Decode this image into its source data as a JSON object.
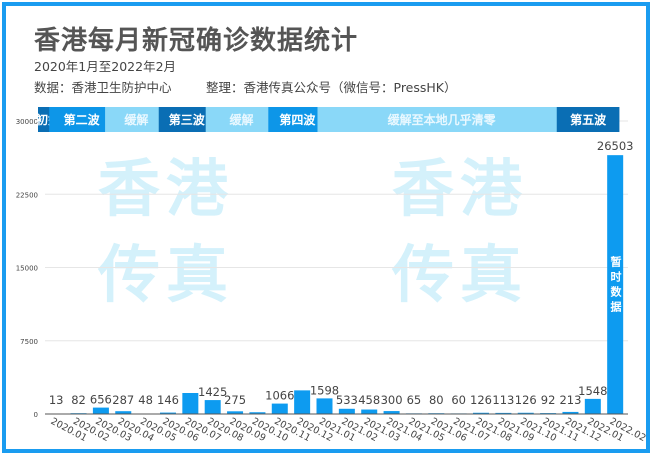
{
  "header": {
    "title": "香港每月新冠确诊数据统计",
    "period": "2020年1月至2022年2月",
    "source": "数据：香港卫生防护中心",
    "compiler": "整理：香港传真公众号（微信号：PressHK）"
  },
  "watermark": "香港传真",
  "colors": {
    "frame": "#1a9cf0",
    "bar": "#0d9bf0",
    "wave": "#0a6eb4",
    "wave_alt": "#0d96e8",
    "relief": "#8ad8f8"
  },
  "chart_data": {
    "type": "bar",
    "categories": [
      "2020.01",
      "2020.02",
      "2020.03",
      "2020.04",
      "2020.05",
      "2020.06",
      "2020.07",
      "2020.08",
      "2020.09",
      "2020.10",
      "2020.11",
      "2020.12",
      "2021.01",
      "2021.02",
      "2021.03",
      "2021.04",
      "2021.05",
      "2021.06",
      "2021.07",
      "2021.08",
      "2021.09",
      "2021.10",
      "2021.11",
      "2021.12",
      "2022.01",
      "2022.02"
    ],
    "values": [
      13,
      82,
      656,
      287,
      48,
      146,
      2150,
      1425,
      275,
      180,
      1066,
      2420,
      1598,
      533,
      458,
      300,
      65,
      80,
      60,
      126,
      113,
      126,
      92,
      213,
      1548,
      26503
    ],
    "labels": [
      "13",
      "82",
      "656",
      "287",
      "48",
      "146",
      null,
      "1425",
      "275",
      null,
      "1066",
      null,
      "1598",
      "533",
      "458",
      "300",
      "65",
      "80",
      "60",
      "126",
      "113",
      "126",
      "92",
      "213",
      "1548",
      "26503"
    ],
    "ylim": [
      0,
      30000
    ],
    "yticks": [
      "0",
      "7500",
      "15000",
      "22500",
      "30000"
    ],
    "grid": true,
    "annotation": "暂时数据",
    "phases": [
      {
        "label": "初始",
        "from": 0,
        "to": 0.5,
        "kind": "wave"
      },
      {
        "label": "第二波",
        "from": 0.5,
        "to": 3,
        "kind": "wave_alt"
      },
      {
        "label": "缓解",
        "from": 3,
        "to": 5.4,
        "kind": "relief"
      },
      {
        "label": "第三波",
        "from": 5.4,
        "to": 7.5,
        "kind": "wave"
      },
      {
        "label": "缓解",
        "from": 7.5,
        "to": 10.3,
        "kind": "relief"
      },
      {
        "label": "第四波",
        "from": 10.3,
        "to": 12.5,
        "kind": "wave_alt"
      },
      {
        "label": "缓解至本地几乎清零",
        "from": 12.5,
        "to": 23.2,
        "kind": "relief"
      },
      {
        "label": "第五波",
        "from": 23.2,
        "to": 25.6,
        "kind": "wave"
      }
    ]
  }
}
